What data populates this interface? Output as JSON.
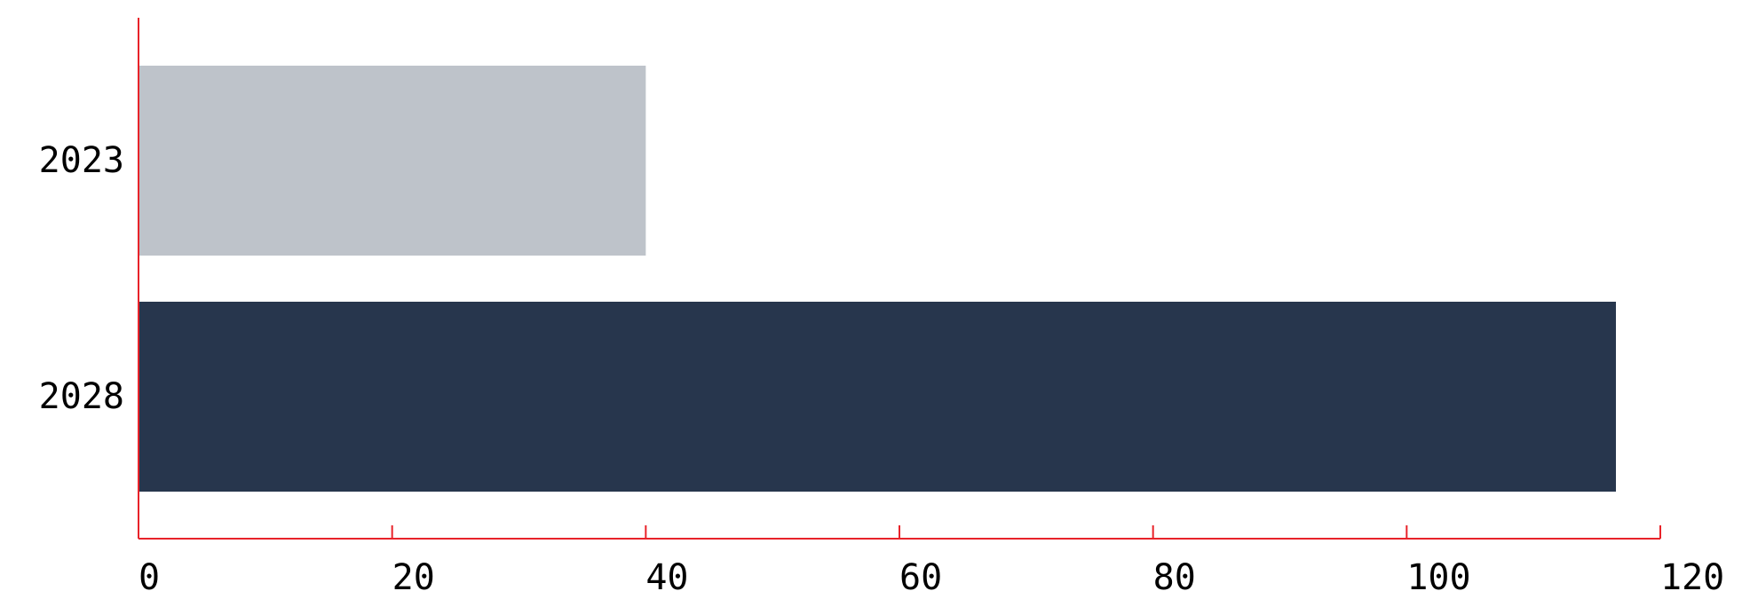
{
  "chart_data": {
    "type": "bar",
    "orientation": "horizontal",
    "categories": [
      "2023",
      "2028"
    ],
    "values": [
      40,
      116.5
    ],
    "bar_colors": [
      "#bec3ca",
      "#27364d"
    ],
    "axis_color": "#e8232a",
    "title": "",
    "xlabel": "",
    "ylabel": "",
    "xlim": [
      0,
      120
    ],
    "xticks": [
      "0",
      "20",
      "40",
      "60",
      "80",
      "100",
      "120"
    ],
    "grid": false,
    "legend": false
  }
}
